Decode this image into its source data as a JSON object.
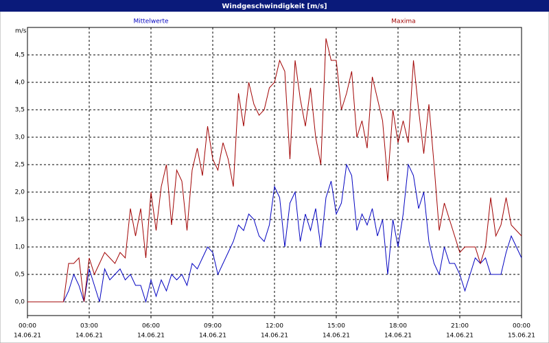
{
  "chart_data": {
    "type": "line",
    "title": "Windgeschwindigkeit [m/s]",
    "y_label": "m/s",
    "x": [
      0,
      0.25,
      0.5,
      0.75,
      1,
      1.25,
      1.5,
      1.75,
      2,
      2.25,
      2.5,
      2.75,
      3,
      3.25,
      3.5,
      3.75,
      4,
      4.25,
      4.5,
      4.75,
      5,
      5.25,
      5.5,
      5.75,
      6,
      6.25,
      6.5,
      6.75,
      7,
      7.25,
      7.5,
      7.75,
      8,
      8.25,
      8.5,
      8.75,
      9,
      9.25,
      9.5,
      9.75,
      10,
      10.25,
      10.5,
      10.75,
      11,
      11.25,
      11.5,
      11.75,
      12,
      12.25,
      12.5,
      12.75,
      13,
      13.25,
      13.5,
      13.75,
      14,
      14.25,
      14.5,
      14.75,
      15,
      15.25,
      15.5,
      15.75,
      16,
      16.25,
      16.5,
      16.75,
      17,
      17.25,
      17.5,
      17.75,
      18,
      18.25,
      18.5,
      18.75,
      19,
      19.25,
      19.5,
      19.75,
      20,
      20.25,
      20.5,
      20.75,
      21,
      21.25,
      21.5,
      21.75,
      22,
      22.25,
      22.5,
      22.75,
      23,
      23.25,
      23.5,
      23.75,
      24
    ],
    "series": [
      {
        "name": "Mittelwerte",
        "color": "#0000c0",
        "values": [
          0,
          0,
          0,
          0,
          0,
          0,
          0,
          0,
          0.2,
          0.5,
          0.3,
          0.0,
          0.6,
          0.3,
          0.0,
          0.6,
          0.4,
          0.5,
          0.6,
          0.4,
          0.5,
          0.3,
          0.3,
          0.0,
          0.4,
          0.1,
          0.4,
          0.2,
          0.5,
          0.4,
          0.5,
          0.3,
          0.7,
          0.6,
          0.8,
          1.0,
          0.9,
          0.5,
          0.7,
          0.9,
          1.1,
          1.4,
          1.3,
          1.6,
          1.5,
          1.2,
          1.1,
          1.4,
          2.1,
          1.9,
          1.0,
          1.8,
          2.0,
          1.1,
          1.6,
          1.3,
          1.7,
          1.0,
          1.9,
          2.2,
          1.6,
          1.8,
          2.5,
          2.3,
          1.3,
          1.6,
          1.4,
          1.7,
          1.2,
          1.5,
          0.5,
          1.5,
          1.0,
          1.6,
          2.5,
          2.3,
          1.7,
          2.0,
          1.1,
          0.7,
          0.5,
          1.0,
          0.7,
          0.7,
          0.5,
          0.2,
          0.5,
          0.8,
          0.7,
          0.8,
          0.5,
          0.5,
          0.5,
          0.9,
          1.2,
          1.0,
          0.8
        ]
      },
      {
        "name": "Maxima",
        "color": "#a00000",
        "values": [
          0,
          0,
          0,
          0,
          0,
          0,
          0,
          0,
          0.7,
          0.7,
          0.8,
          0.0,
          0.8,
          0.5,
          0.7,
          0.9,
          0.8,
          0.7,
          0.9,
          0.8,
          1.7,
          1.2,
          1.7,
          0.8,
          2.0,
          1.3,
          2.1,
          2.5,
          1.4,
          2.4,
          2.2,
          1.3,
          2.4,
          2.8,
          2.3,
          3.2,
          2.6,
          2.4,
          2.9,
          2.6,
          2.1,
          3.8,
          3.2,
          4.0,
          3.6,
          3.4,
          3.5,
          3.9,
          4.0,
          4.4,
          4.2,
          2.6,
          4.4,
          3.7,
          3.2,
          3.9,
          3.0,
          2.5,
          4.8,
          4.4,
          4.4,
          3.5,
          3.8,
          4.2,
          3.0,
          3.3,
          2.8,
          4.1,
          3.7,
          3.3,
          2.2,
          3.5,
          2.9,
          3.3,
          2.9,
          4.4,
          3.5,
          2.7,
          3.6,
          2.5,
          1.3,
          1.8,
          1.5,
          1.2,
          0.9,
          1.0,
          1.0,
          1.0,
          0.7,
          1.0,
          1.9,
          1.2,
          1.4,
          1.9,
          1.4,
          1.3,
          1.2
        ]
      }
    ],
    "xlim": [
      0,
      24
    ],
    "xticks": [
      {
        "value": 0,
        "label": "00:00"
      },
      {
        "value": 3,
        "label": "03:00"
      },
      {
        "value": 6,
        "label": "06:00"
      },
      {
        "value": 9,
        "label": "09:00"
      },
      {
        "value": 12,
        "label": "12:00"
      },
      {
        "value": 15,
        "label": "15:00"
      },
      {
        "value": 18,
        "label": "18:00"
      },
      {
        "value": 21,
        "label": "21:00"
      },
      {
        "value": 24,
        "label": "00:00"
      }
    ],
    "xtick_dates": [
      "14.06.21",
      "14.06.21",
      "14.06.21",
      "14.06.21",
      "14.06.21",
      "14.06.21",
      "14.06.21",
      "14.06.21",
      "15.06.21"
    ],
    "ylim": [
      -0.25,
      5.0
    ],
    "yticks": [
      {
        "value": 0,
        "label": "0,0"
      },
      {
        "value": 0.5,
        "label": "0,5"
      },
      {
        "value": 1,
        "label": "1,0"
      },
      {
        "value": 1.5,
        "label": "1,5"
      },
      {
        "value": 2,
        "label": "2,0"
      },
      {
        "value": 2.5,
        "label": "2,5"
      },
      {
        "value": 3,
        "label": "3,0"
      },
      {
        "value": 3.5,
        "label": "3,5"
      },
      {
        "value": 4,
        "label": "4,0"
      },
      {
        "value": 4.5,
        "label": "4,5"
      }
    ],
    "grid": true
  }
}
